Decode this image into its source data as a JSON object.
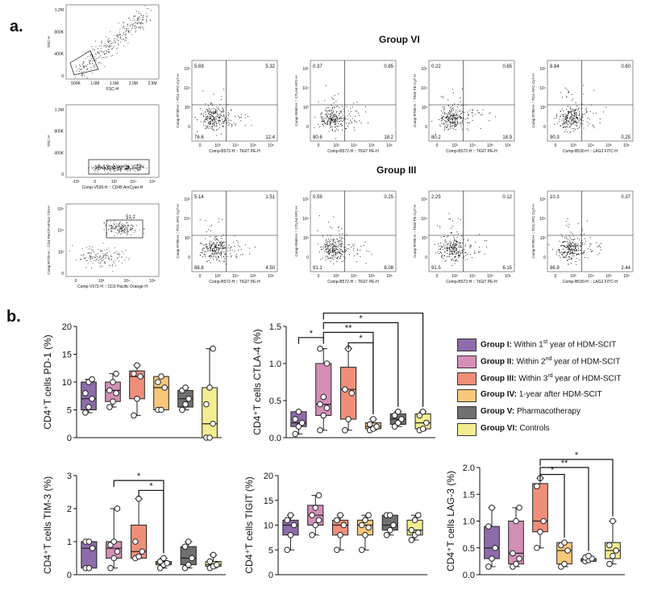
{
  "panel_a_label": "a.",
  "panel_b_label": "b.",
  "gating": [
    {
      "ylabel": "SSC-H",
      "xlabel": "FSC-H",
      "yticks": [
        "1.2M",
        "800K",
        "400K",
        "0"
      ],
      "xticks": [
        "500K",
        "1.0M",
        "1.5M",
        "2.0M",
        "2.5M"
      ]
    },
    {
      "ylabel": "SSC-H",
      "xlabel": "Comp-V530-H :: CD45 AmCyan-H",
      "yticks": [
        "1.2M",
        "800K",
        "400K",
        "0"
      ],
      "xticks": [
        "-10³",
        "0",
        "10³",
        "10⁴",
        "10⁵"
      ]
    },
    {
      "ylabel": "Comp-R725-H :: CD4 PerCP-eFluor 710-H",
      "xlabel": "Comp-V572-H :: CD3 Pacific Orange-H",
      "gate_value": "51.2",
      "yticks": [
        "10⁵",
        "10⁴",
        "10³",
        "0"
      ],
      "xticks": [
        "0",
        "10³",
        "10⁴",
        "10⁵"
      ]
    }
  ],
  "flow_groups": [
    {
      "title": "Group VI",
      "plots": [
        {
          "ylabel": "Comp-R780-H :: PD1 APC-Cy7-H",
          "xlabel": "Comp-B572-H :: TIGIT PE-H",
          "ul": "5.69",
          "ur": "5.32",
          "ll": "76.6",
          "lr": "12.4"
        },
        {
          "ylabel": "Comp-R660-H :: CTLA4 APC-H",
          "xlabel": "Comp-B572-H :: TIGIT PE-H",
          "ul": "0.37",
          "ur": "0.85",
          "ll": "80.6",
          "lr": "18.2"
        },
        {
          "ylabel": "Comp-R780-H :: TIM3 PE-Cy7-H",
          "xlabel": "Comp-B572-H :: TIGIT PE-H",
          "ul": "0.22",
          "ur": "0.65",
          "ll": "80.2",
          "lr": "18.9"
        },
        {
          "ylabel": "Comp-R780-H :: PD1 APC-Cy7-H",
          "xlabel": "Comp-B530-H :: LAG3 FITC-H",
          "ul": "8.84",
          "ur": "0.60",
          "ll": "90.3",
          "lr": "0.25"
        }
      ]
    },
    {
      "title": "Group III",
      "plots": [
        {
          "ylabel": "Comp-R780-H :: PD1 APC-Cy7-H",
          "xlabel": "Comp-B572-H :: TIGIT PE-H",
          "ul": "5.14",
          "ur": "1.51",
          "ll": "88.8",
          "lr": "4.50"
        },
        {
          "ylabel": "Comp-R660-H :: CTLA4 APC-H",
          "xlabel": "Comp-B572-H :: TIGIT PE-H",
          "ul": "0.59",
          "ur": "0.25",
          "ll": "91.1",
          "lr": "8.08"
        },
        {
          "ylabel": "Comp-R780-H :: TIM3 PE-Cy7-H",
          "xlabel": "Comp-B572-H :: TIGIT PE-H",
          "ul": "2.25",
          "ur": "0.12",
          "ll": "91.5",
          "lr": "6.15"
        },
        {
          "ylabel": "Comp-R780-H :: PD1 APC-Cy7-H",
          "xlabel": "Comp-B530-H :: LAG3 FITC-H",
          "ul": "10.3",
          "ur": "0.37",
          "ll": "86.9",
          "lr": "2.44"
        }
      ]
    }
  ],
  "flow_ticks": {
    "y": [
      "10⁵",
      "10⁴",
      "10³",
      "0"
    ],
    "x": [
      "0",
      "10³",
      "10⁴",
      "10⁵",
      "10⁶"
    ]
  },
  "legend": [
    {
      "bold": "Group I:",
      "pre": " Within 1",
      "sup": "st",
      "post": " year of HDM-SCIT",
      "color": "#8e6bab"
    },
    {
      "bold": "Group II:",
      "pre": " Within 2",
      "sup": "nd",
      "post": " year of HDM-SCIT",
      "color": "#d48fb6"
    },
    {
      "bold": "Group III:",
      "pre": " Within 3",
      "sup": "rd",
      "post": " year of HDM-SCIT",
      "color": "#ef8f7a"
    },
    {
      "bold": "Group IV:",
      "pre": " 1-year after HDM-SCIT",
      "sup": "",
      "post": "",
      "color": "#f8c77a"
    },
    {
      "bold": "Group V:",
      "pre": " Pharmacotherapy",
      "sup": "",
      "post": "",
      "color": "#707070"
    },
    {
      "bold": "Group VI:",
      "pre": " Controls",
      "sup": "",
      "post": "",
      "color": "#f2ee90"
    }
  ],
  "chart_data": [
    {
      "type": "box",
      "ylabel": "CD4⁺T cells PD-1 (%)",
      "ylim": [
        0,
        20
      ],
      "yticks": [
        0,
        5,
        10,
        15,
        20
      ],
      "boxes": [
        {
          "min": 4.5,
          "q1": 5,
          "median": 7,
          "q3": 10,
          "max": 10.5,
          "points": [
            4.5,
            5.5,
            7,
            8,
            10,
            10.5
          ]
        },
        {
          "min": 5.5,
          "q1": 6.5,
          "median": 8.5,
          "q3": 10,
          "max": 11.5,
          "points": [
            5.5,
            6.5,
            8,
            8.5,
            10,
            11.5
          ]
        },
        {
          "min": 4,
          "q1": 7,
          "median": 11,
          "q3": 12,
          "max": 13,
          "points": [
            4,
            7,
            11,
            11.5,
            13
          ]
        },
        {
          "min": 5,
          "q1": 5,
          "median": 9,
          "q3": 11,
          "max": 11,
          "points": [
            5,
            5,
            9,
            10,
            11
          ]
        },
        {
          "min": 5,
          "q1": 5.5,
          "median": 7,
          "q3": 8.5,
          "max": 9,
          "points": [
            5,
            6,
            7,
            8.5,
            9
          ]
        },
        {
          "min": 0,
          "q1": 0,
          "median": 2.5,
          "q3": 9,
          "max": 16,
          "points": [
            0,
            0,
            2.5,
            6,
            9,
            16
          ]
        }
      ],
      "significance": []
    },
    {
      "type": "box",
      "ylabel": "CD4⁺T cells CTLA-4 (%)",
      "ylim": [
        0,
        1.5
      ],
      "yticks": [
        0.0,
        0.5,
        1.0,
        1.5
      ],
      "boxes": [
        {
          "min": 0.05,
          "q1": 0.15,
          "median": 0.2,
          "q3": 0.35,
          "max": 0.35,
          "points": [
            0.05,
            0.15,
            0.2,
            0.25,
            0.35
          ]
        },
        {
          "min": 0.1,
          "q1": 0.3,
          "median": 0.45,
          "q3": 1.0,
          "max": 1.2,
          "points": [
            0.1,
            0.3,
            0.4,
            0.45,
            0.55,
            1.0,
            1.2
          ]
        },
        {
          "min": 0.1,
          "q1": 0.25,
          "median": 0.65,
          "q3": 0.95,
          "max": 1.2,
          "points": [
            0.1,
            0.25,
            0.6,
            0.65,
            1.2
          ]
        },
        {
          "min": 0.1,
          "q1": 0.12,
          "median": 0.15,
          "q3": 0.2,
          "max": 0.25,
          "points": [
            0.1,
            0.12,
            0.15,
            0.18,
            0.25
          ]
        },
        {
          "min": 0.15,
          "q1": 0.18,
          "median": 0.25,
          "q3": 0.32,
          "max": 0.35,
          "points": [
            0.15,
            0.2,
            0.25,
            0.3,
            0.35
          ]
        },
        {
          "min": 0.1,
          "q1": 0.12,
          "median": 0.2,
          "q3": 0.32,
          "max": 0.35,
          "points": [
            0.1,
            0.12,
            0.2,
            0.3,
            0.35
          ]
        }
      ],
      "significance": [
        {
          "from": 0,
          "to": 1,
          "label": "*",
          "level": 1.35
        },
        {
          "from": 1,
          "to": 5,
          "label": "*",
          "level": 1.68
        },
        {
          "from": 1,
          "to": 4,
          "label": "*",
          "level": 1.55
        },
        {
          "from": 1,
          "to": 3,
          "label": "**",
          "level": 1.42
        },
        {
          "from": 2,
          "to": 3,
          "label": "*",
          "level": 1.28
        }
      ]
    },
    {
      "type": "box",
      "ylabel": "CD4⁺T cells TIM-3 (%)",
      "ylim": [
        0,
        3
      ],
      "yticks": [
        0,
        1,
        2,
        3
      ],
      "boxes": [
        {
          "min": 0.2,
          "q1": 0.2,
          "median": 0.8,
          "q3": 1.0,
          "max": 1.0,
          "points": [
            0.2,
            0.2,
            0.8,
            1.0,
            1.0
          ]
        },
        {
          "min": 0.2,
          "q1": 0.5,
          "median": 0.8,
          "q3": 1.0,
          "max": 2.0,
          "points": [
            0.2,
            0.5,
            0.7,
            0.9,
            1.0,
            2.0
          ]
        },
        {
          "min": 0.5,
          "q1": 0.5,
          "median": 0.7,
          "q3": 1.5,
          "max": 2.3,
          "points": [
            0.5,
            0.55,
            0.7,
            1.0,
            2.3
          ]
        },
        {
          "min": 0.2,
          "q1": 0.3,
          "median": 0.35,
          "q3": 0.4,
          "max": 0.5,
          "points": [
            0.2,
            0.3,
            0.35,
            0.4,
            0.5
          ]
        },
        {
          "min": 0.2,
          "q1": 0.3,
          "median": 0.5,
          "q3": 0.85,
          "max": 1.0,
          "points": [
            0.2,
            0.3,
            0.5,
            0.85,
            1.0
          ]
        },
        {
          "min": 0.2,
          "q1": 0.25,
          "median": 0.3,
          "q3": 0.4,
          "max": 0.6,
          "points": [
            0.2,
            0.25,
            0.3,
            0.4,
            0.6
          ]
        }
      ],
      "significance": [
        {
          "from": 1,
          "to": 3,
          "label": "*",
          "level": 2.85
        },
        {
          "from": 2,
          "to": 3,
          "label": "*",
          "level": 2.55
        }
      ]
    },
    {
      "type": "box",
      "ylabel": "CD4⁺T cells TIGIT (%)",
      "ylim": [
        0,
        20
      ],
      "yticks": [
        0,
        5,
        10,
        15,
        20
      ],
      "boxes": [
        {
          "min": 5,
          "q1": 8,
          "median": 10,
          "q3": 11,
          "max": 12,
          "points": [
            5,
            8,
            10,
            11,
            12
          ]
        },
        {
          "min": 8,
          "q1": 10,
          "median": 12,
          "q3": 14,
          "max": 16,
          "points": [
            8,
            10,
            11,
            12,
            13.5,
            16
          ]
        },
        {
          "min": 5,
          "q1": 8,
          "median": 10,
          "q3": 11,
          "max": 12,
          "points": [
            5,
            8,
            10,
            11,
            12
          ]
        },
        {
          "min": 5,
          "q1": 8,
          "median": 10,
          "q3": 11,
          "max": 12,
          "points": [
            5,
            8,
            9.5,
            10,
            11,
            12
          ]
        },
        {
          "min": 8,
          "q1": 9,
          "median": 10,
          "q3": 12,
          "max": 12,
          "points": [
            8,
            9,
            10,
            12,
            12
          ]
        },
        {
          "min": 7,
          "q1": 8,
          "median": 9,
          "q3": 11,
          "max": 12,
          "points": [
            7,
            8,
            8.5,
            9,
            11,
            12
          ]
        }
      ],
      "significance": []
    },
    {
      "type": "box",
      "ylabel": "CD4⁺T cells LAG-3 (%)",
      "ylim": [
        0,
        2.0
      ],
      "yticks": [
        0.0,
        0.5,
        1.0,
        1.5,
        2.0
      ],
      "boxes": [
        {
          "min": 0.15,
          "q1": 0.3,
          "median": 0.5,
          "q3": 0.9,
          "max": 1.25,
          "points": [
            0.15,
            0.3,
            0.5,
            0.9,
            1.25
          ]
        },
        {
          "min": 0.15,
          "q1": 0.2,
          "median": 0.4,
          "q3": 1.0,
          "max": 1.25,
          "points": [
            0.15,
            0.2,
            0.3,
            0.4,
            1.0,
            1.25
          ]
        },
        {
          "min": 0.5,
          "q1": 0.8,
          "median": 1.0,
          "q3": 1.7,
          "max": 1.8,
          "points": [
            0.5,
            0.8,
            1.0,
            1.65,
            1.8
          ]
        },
        {
          "min": 0.15,
          "q1": 0.2,
          "median": 0.45,
          "q3": 0.6,
          "max": 0.6,
          "points": [
            0.15,
            0.2,
            0.45,
            0.55,
            0.6
          ]
        },
        {
          "min": 0.25,
          "q1": 0.25,
          "median": 0.3,
          "q3": 0.3,
          "max": 0.35,
          "points": [
            0.25,
            0.27,
            0.3,
            0.32,
            0.35
          ]
        },
        {
          "min": 0.2,
          "q1": 0.3,
          "median": 0.45,
          "q3": 0.6,
          "max": 1.0,
          "points": [
            0.2,
            0.35,
            0.45,
            0.55,
            1.0
          ]
        }
      ],
      "significance": [
        {
          "from": 2,
          "to": 5,
          "label": "*",
          "level": 2.15
        },
        {
          "from": 2,
          "to": 4,
          "label": "**",
          "level": 2.0
        },
        {
          "from": 2,
          "to": 3,
          "label": "*",
          "level": 1.87
        }
      ]
    }
  ]
}
